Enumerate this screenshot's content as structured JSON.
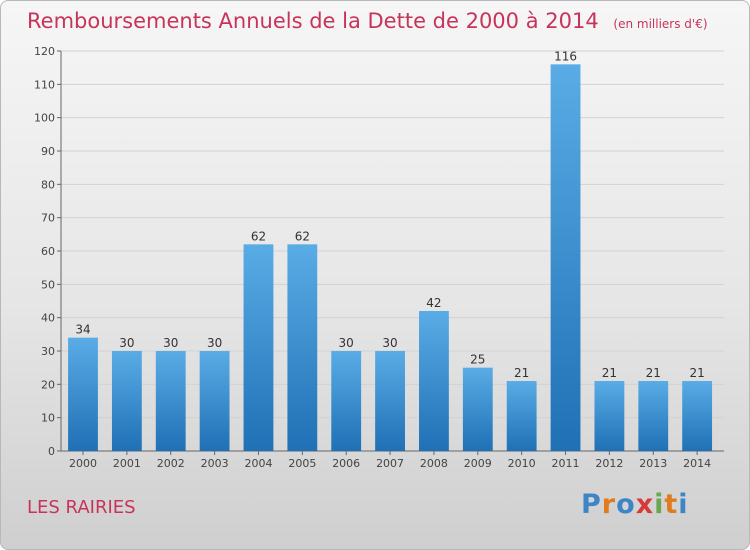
{
  "header": {
    "title": "Remboursements Annuels de la Dette de 2000 à 2014",
    "unit": "(en milliers d'€)"
  },
  "footer": {
    "commune": "LES RAIRIES",
    "logo": "Proxiti"
  },
  "colors": {
    "title": "#c8335a",
    "bar_light": "#5aace6",
    "bar_dark": "#1f70b5",
    "logo_letters": [
      "#3d85c6",
      "#e07b1f",
      "#3d85c6",
      "#d63b3b",
      "#6aa84f",
      "#e07b1f",
      "#3d85c6"
    ]
  },
  "chart_data": {
    "type": "bar",
    "title": "Remboursements Annuels de la Dette de 2000 à 2014",
    "xlabel": "",
    "ylabel": "",
    "ylim": [
      0,
      120
    ],
    "yticks": [
      0,
      10,
      20,
      30,
      40,
      50,
      60,
      70,
      80,
      90,
      100,
      110,
      120
    ],
    "grid": true,
    "categories": [
      "2000",
      "2001",
      "2002",
      "2003",
      "2004",
      "2005",
      "2006",
      "2007",
      "2008",
      "2009",
      "2010",
      "2011",
      "2012",
      "2013",
      "2014"
    ],
    "values": [
      34,
      30,
      30,
      30,
      62,
      62,
      30,
      30,
      42,
      25,
      21,
      116,
      21,
      21,
      21
    ]
  }
}
